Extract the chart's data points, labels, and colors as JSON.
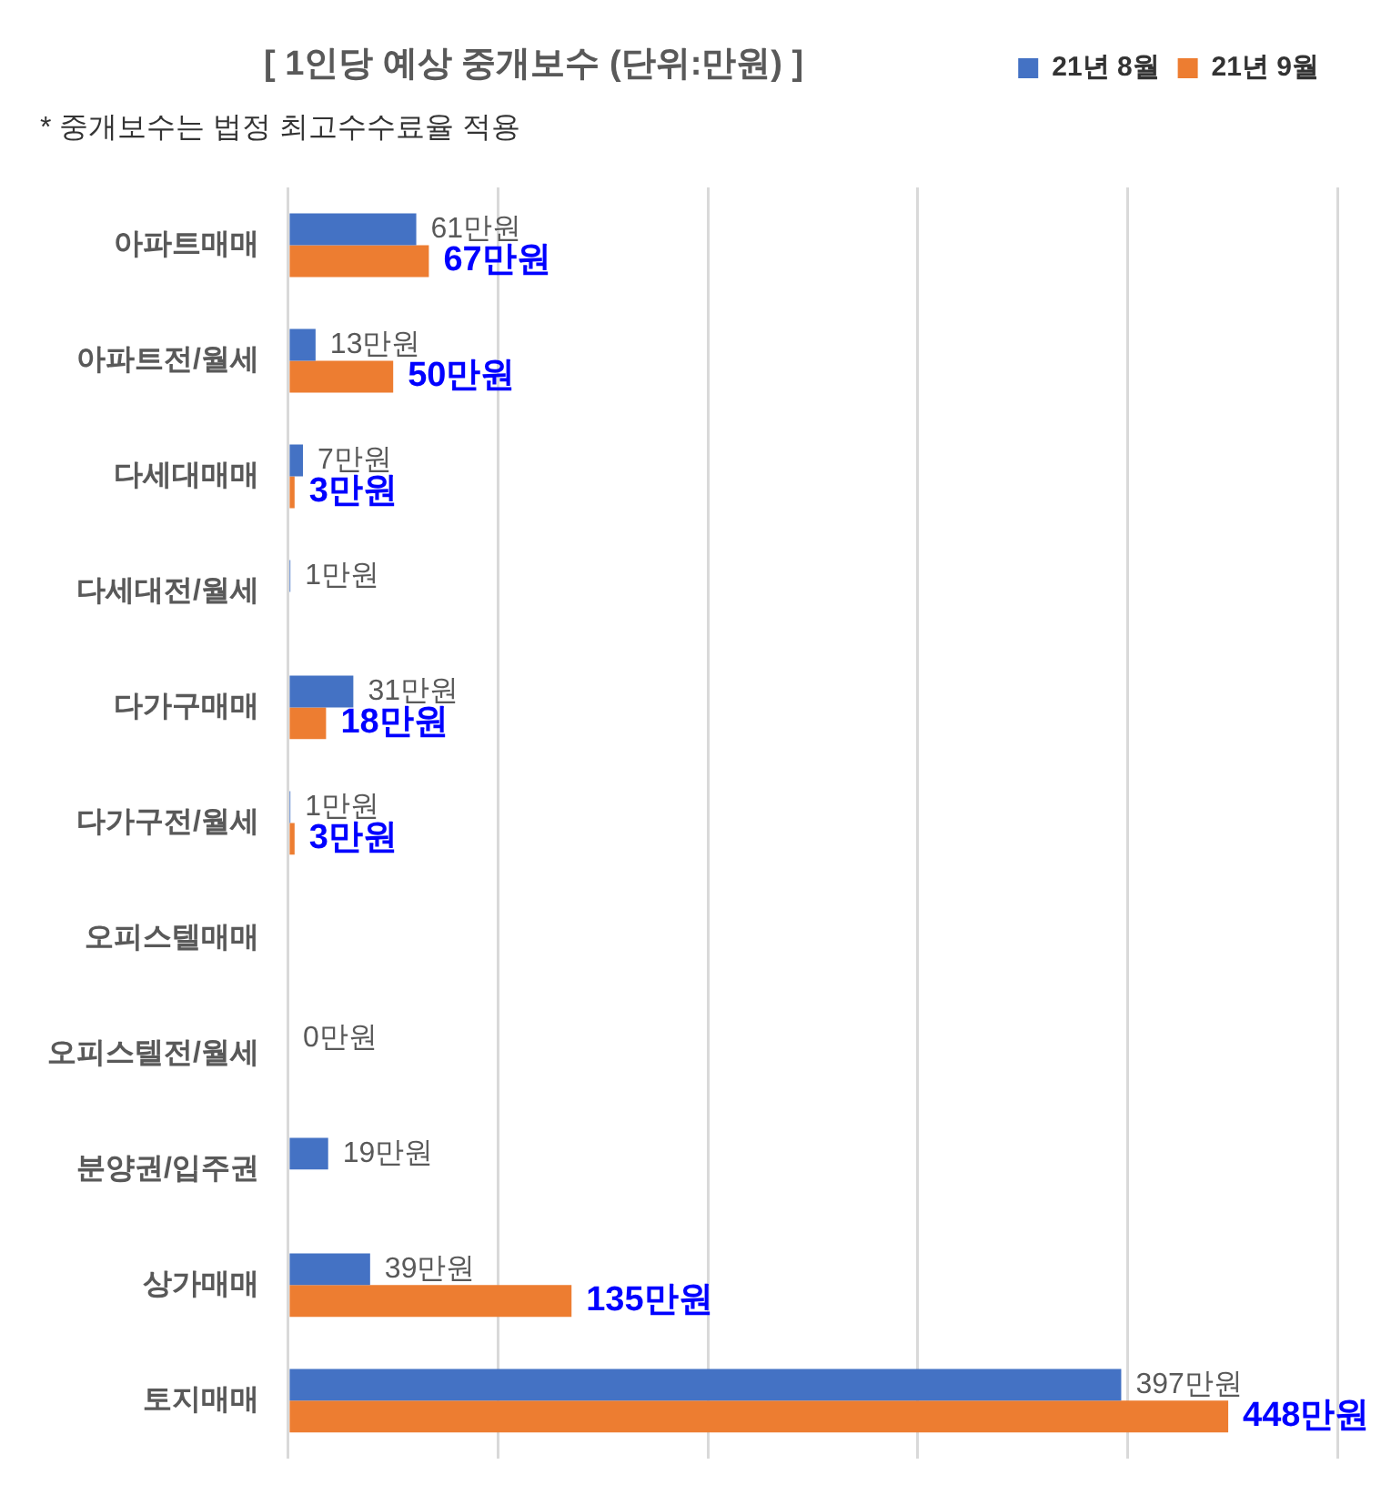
{
  "chart_data": {
    "type": "bar",
    "orientation": "horizontal",
    "title": "[ 1인당 예상 중개보수 (단위:만원) ]",
    "annotations": [
      "* 중개보수는 법정 최고수수료율 적용"
    ],
    "categories": [
      "아파트매매",
      "아파트전/월세",
      "다세대매매",
      "다세대전/월세",
      "다가구매매",
      "다가구전/월세",
      "오피스텔매매",
      "오피스텔전/월세",
      "분양권/입주권",
      "상가매매",
      "토지매매"
    ],
    "series": [
      {
        "name": "21년 8월",
        "color": "#4472c4",
        "values": [
          61,
          13,
          7,
          1,
          31,
          1,
          null,
          0,
          19,
          39,
          397
        ],
        "value_labels": [
          "61만원",
          "13만원",
          "7만원",
          "1만원",
          "31만원",
          "1만원",
          null,
          "0만원",
          "19만원",
          "39만원",
          "397만원"
        ]
      },
      {
        "name": "21년 9월",
        "color": "#ed7d31",
        "values": [
          67,
          50,
          3,
          null,
          18,
          3,
          null,
          null,
          null,
          135,
          448
        ],
        "value_labels": [
          "67만원",
          "50만원",
          "3만원",
          null,
          "18만원",
          "3만원",
          null,
          null,
          null,
          "135만원",
          "448만원"
        ]
      }
    ],
    "xlim": [
      0,
      500
    ],
    "xticks": [
      {
        "value": 0,
        "label": null
      },
      {
        "value": 100,
        "label": null
      },
      {
        "value": 200,
        "label": null
      },
      {
        "value": 300,
        "label": null
      },
      {
        "value": 400,
        "label": null
      },
      {
        "value": 500,
        "label": null
      }
    ],
    "tick_labels": "y",
    "grid": "x",
    "legend": "top right"
  }
}
